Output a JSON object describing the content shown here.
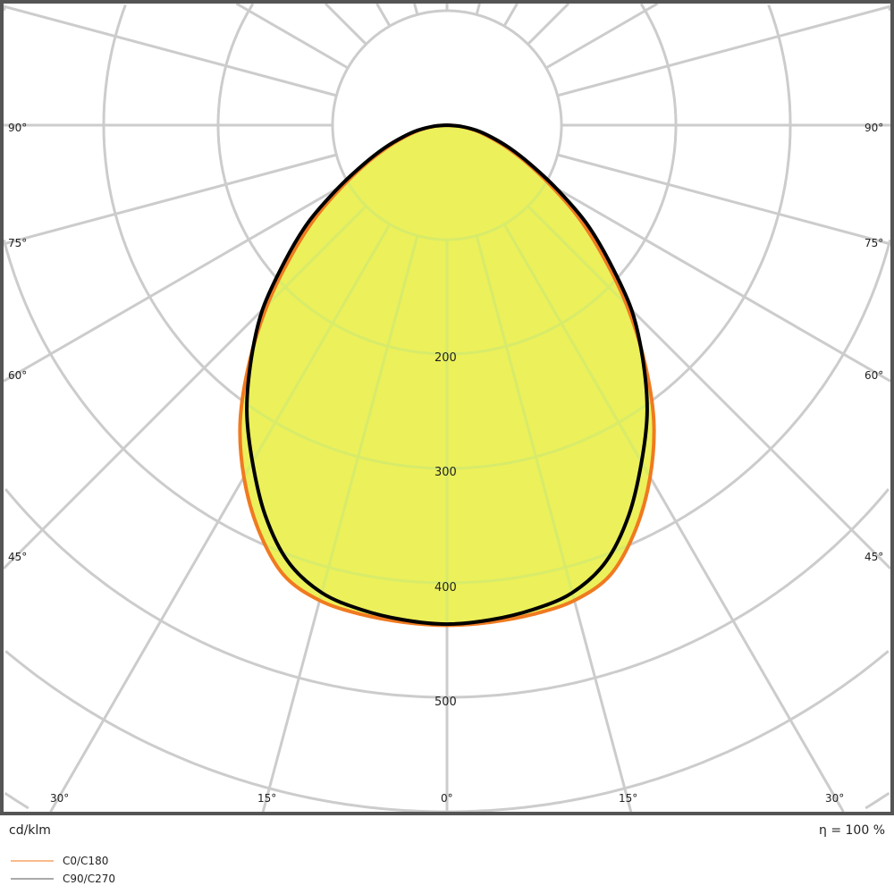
{
  "chart_data": {
    "type": "polar",
    "unit_label": "cd/klm",
    "efficiency_label": "η = 100 %",
    "radial_ticks": [
      100,
      200,
      300,
      400,
      500,
      600,
      700
    ],
    "radial_tick_labels": [
      "200",
      "300",
      "400",
      "500"
    ],
    "angle_tick_labels_left": [
      "90°",
      "75°",
      "60°",
      "45°",
      "30°",
      "15°"
    ],
    "angle_center_label": "0°",
    "angle_tick_labels_right": [
      "15°",
      "30°",
      "45°",
      "60°",
      "75°",
      "90°"
    ],
    "angles_deg": [
      0,
      5,
      10,
      15,
      20,
      25,
      30,
      35,
      40,
      45,
      50,
      55,
      60,
      65,
      70,
      75,
      80,
      85,
      90
    ],
    "series": [
      {
        "name": "C0/C180",
        "color": "#f07a20",
        "legend_color": "#f9b98a",
        "values": [
          437,
          436,
          434,
          430,
          418,
          390,
          355,
          315,
          268,
          222,
          178,
          140,
          104,
          76,
          54,
          37,
          24,
          11,
          0
        ]
      },
      {
        "name": "C90/C270",
        "color": "#000000",
        "legend_color": "#aaaaaa",
        "values": [
          436,
          434,
          430,
          423,
          406,
          376,
          340,
          305,
          266,
          228,
          185,
          148,
          110,
          80,
          58,
          40,
          26,
          12,
          0
        ]
      }
    ],
    "fill_color": "#ecf05a",
    "grid": true,
    "legend_placement": "bottom-left"
  }
}
